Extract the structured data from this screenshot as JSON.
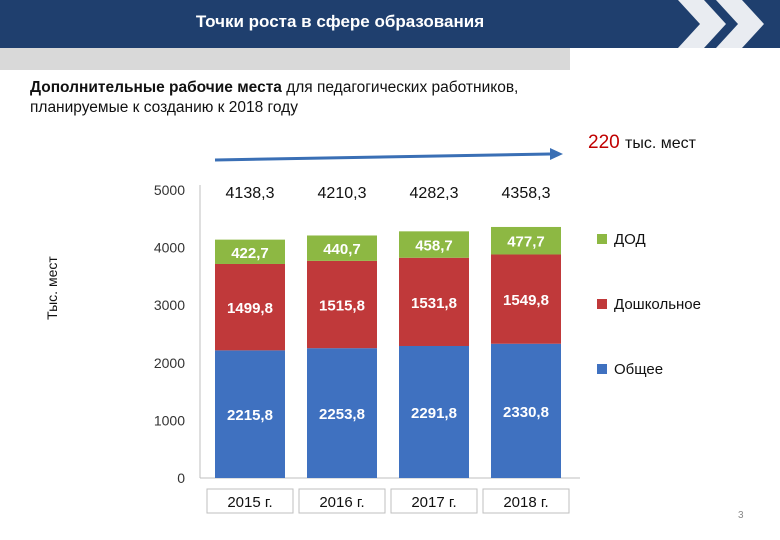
{
  "header": {
    "title": "Точки роста в сфере образования"
  },
  "subtitle": {
    "bold": "Дополнительные рабочие места",
    "rest": " для педагогических работников, планируемые к  созданию к 2018 году"
  },
  "total": {
    "value": "220",
    "unit": "тыс. мест"
  },
  "page_number": "3",
  "colors": {
    "header": "#1f3f6e",
    "obshchee": "#3f71c0",
    "doshkolnoe": "#c0393a",
    "dod": "#8db843",
    "arrow": "#3a6fb5"
  },
  "chart_data": {
    "type": "bar",
    "stacked": true,
    "categories": [
      "2015 г.",
      "2016 г.",
      "2017 г.",
      "2018 г."
    ],
    "series": [
      {
        "name": "Общее",
        "values": [
          2215.8,
          2253.8,
          2291.8,
          2330.8
        ],
        "labels": [
          "2215,8",
          "2253,8",
          "2291,8",
          "2330,8"
        ],
        "color": "#3f71c0"
      },
      {
        "name": "Дошкольное",
        "values": [
          1499.8,
          1515.8,
          1531.8,
          1549.8
        ],
        "labels": [
          "1499,8",
          "1515,8",
          "1531,8",
          "1549,8"
        ],
        "color": "#c0393a"
      },
      {
        "name": "ДОД",
        "values": [
          422.7,
          440.7,
          458.7,
          477.7
        ],
        "labels": [
          "422,7",
          "440,7",
          "458,7",
          "477,7"
        ],
        "color": "#8db843"
      }
    ],
    "totals": [
      "4138,3",
      "4210,3",
      "4282,3",
      "4358,3"
    ],
    "ylabel": "Тыс. мест",
    "ylim": [
      0,
      5000
    ],
    "yticks": [
      0,
      1000,
      2000,
      3000,
      4000,
      5000
    ],
    "ytick_labels": [
      "0",
      "1000",
      "2000",
      "3000",
      "4000",
      "5000"
    ],
    "grid": false,
    "legend": "right"
  }
}
